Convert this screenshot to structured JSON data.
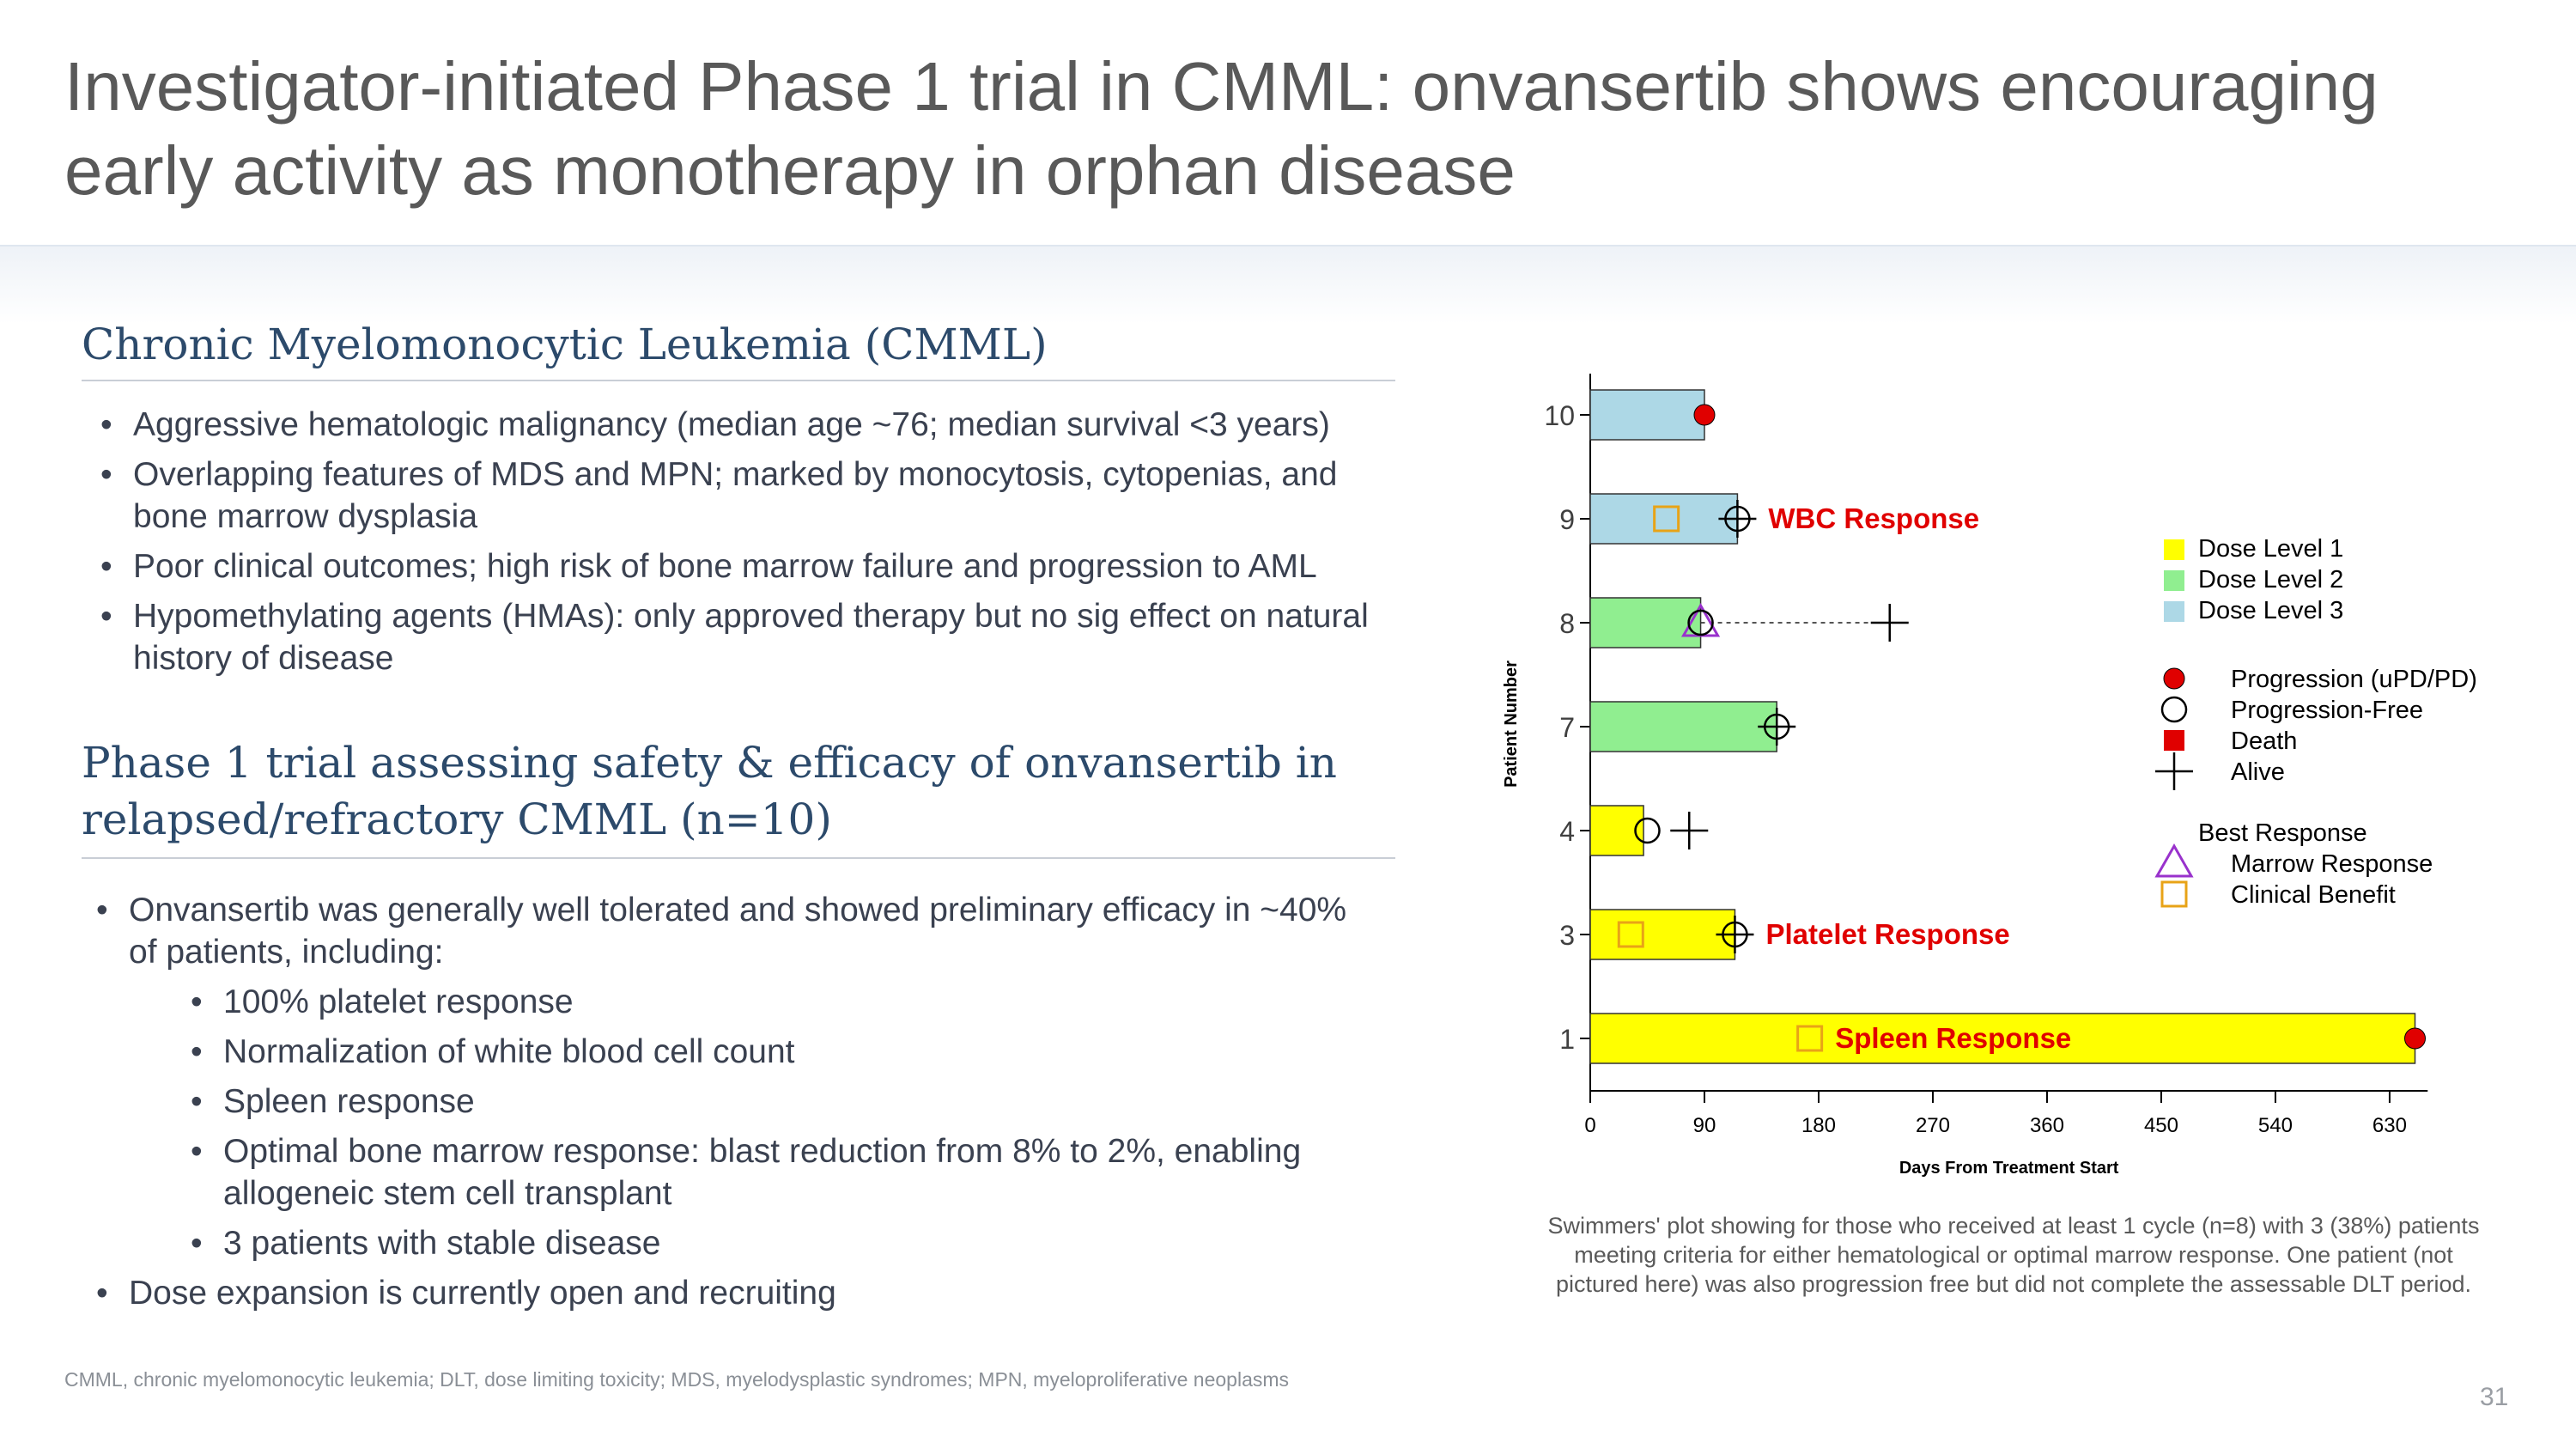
{
  "slide": {
    "title": "Investigator-initiated Phase 1 trial in CMML: onvansertib shows encouraging early activity as monotherapy in orphan disease",
    "page_number": "31",
    "footnote": "CMML, chronic myelomonocytic leukemia; DLT, dose limiting toxicity; MDS, myelodysplastic syndromes; MPN, myeloproliferative neoplasms"
  },
  "section1": {
    "heading": "Chronic Myelomonocytic Leukemia (CMML)",
    "bullets": [
      "Aggressive hematologic malignancy (median age ~76; median survival <3 years)",
      "Overlapping features of MDS and MPN; marked by monocytosis, cytopenias, and bone marrow dysplasia",
      "Poor clinical outcomes; high risk of bone marrow failure and progression to AML",
      "Hypomethylating agents (HMAs): only approved therapy but no sig effect on natural history of disease"
    ]
  },
  "section2": {
    "heading": "Phase 1 trial assessing safety & efficacy of onvansertib in relapsed/refractory CMML (n=10)",
    "bullets": [
      "Onvansertib was generally well tolerated and showed preliminary efficacy in ~40% of patients, including:",
      "100% platelet response",
      "Normalization of white blood cell count",
      "Spleen response",
      "Optimal bone marrow response: blast reduction from 8% to 2%, enabling allogeneic stem cell transplant",
      "3 patients with stable disease",
      "Dose expansion is currently open and recruiting"
    ]
  },
  "caption": "Swimmers' plot showing for those who received at least 1 cycle (n=8) with 3 (38%) patients meeting criteria for either hematological or optimal marrow response. One patient (not pictured here) was also progression free but did not complete the assessable DLT period.",
  "chart_data": {
    "type": "swimmer",
    "xlabel": "Days From Treatment Start",
    "ylabel": "Patient Number",
    "xlim": [
      0,
      660
    ],
    "xticks": [
      0,
      90,
      180,
      270,
      360,
      450,
      540,
      630
    ],
    "colors": {
      "Dose Level 1": "#ffff00",
      "Dose Level 2": "#90ee90",
      "Dose Level 3": "#add8e6",
      "progression": "#e00000",
      "death": "#e00000",
      "marrow_response": "#9932cc",
      "clinical_benefit": "#e8a317",
      "annotation": "#e00000"
    },
    "patients": [
      {
        "id": "10",
        "dose_level": "Dose Level 3",
        "duration": 90,
        "events": [
          {
            "type": "progression",
            "day": 90
          }
        ]
      },
      {
        "id": "9",
        "dose_level": "Dose Level 3",
        "duration": 116,
        "events": [
          {
            "type": "clinical_benefit",
            "day": 60
          },
          {
            "type": "progression_free",
            "day": 116
          },
          {
            "type": "alive",
            "day": 116
          }
        ],
        "annotation": "WBC Response"
      },
      {
        "id": "8",
        "dose_level": "Dose Level 2",
        "duration": 87,
        "events": [
          {
            "type": "marrow_response",
            "day": 87
          },
          {
            "type": "progression_free",
            "day": 87
          },
          {
            "type": "alive",
            "day": 236
          }
        ],
        "followup_to": 236
      },
      {
        "id": "7",
        "dose_level": "Dose Level 2",
        "duration": 147,
        "events": [
          {
            "type": "progression_free",
            "day": 147
          },
          {
            "type": "alive",
            "day": 147
          }
        ]
      },
      {
        "id": "4",
        "dose_level": "Dose Level 1",
        "duration": 42,
        "events": [
          {
            "type": "progression_free",
            "day": 45
          },
          {
            "type": "alive",
            "day": 78
          }
        ]
      },
      {
        "id": "3",
        "dose_level": "Dose Level 1",
        "duration": 114,
        "events": [
          {
            "type": "clinical_benefit",
            "day": 32
          },
          {
            "type": "progression_free",
            "day": 114
          },
          {
            "type": "alive",
            "day": 114
          }
        ],
        "annotation": "Platelet Response"
      },
      {
        "id": "1",
        "dose_level": "Dose Level 1",
        "duration": 650,
        "events": [
          {
            "type": "clinical_benefit",
            "day": 173
          },
          {
            "type": "progression",
            "day": 650
          }
        ],
        "annotation": "Spleen Response",
        "annotation_inside": true
      }
    ],
    "legend": {
      "dose_levels": [
        "Dose Level 1",
        "Dose Level 2",
        "Dose Level 3"
      ],
      "status": [
        {
          "key": "progression",
          "label": "Progression (uPD/PD)"
        },
        {
          "key": "progression_free",
          "label": "Progression-Free"
        },
        {
          "key": "death",
          "label": "Death"
        },
        {
          "key": "alive",
          "label": "Alive"
        }
      ],
      "best_response_title": "Best Response",
      "best_response": [
        {
          "key": "marrow_response",
          "label": "Marrow Response"
        },
        {
          "key": "clinical_benefit",
          "label": "Clinical Benefit"
        }
      ]
    }
  }
}
